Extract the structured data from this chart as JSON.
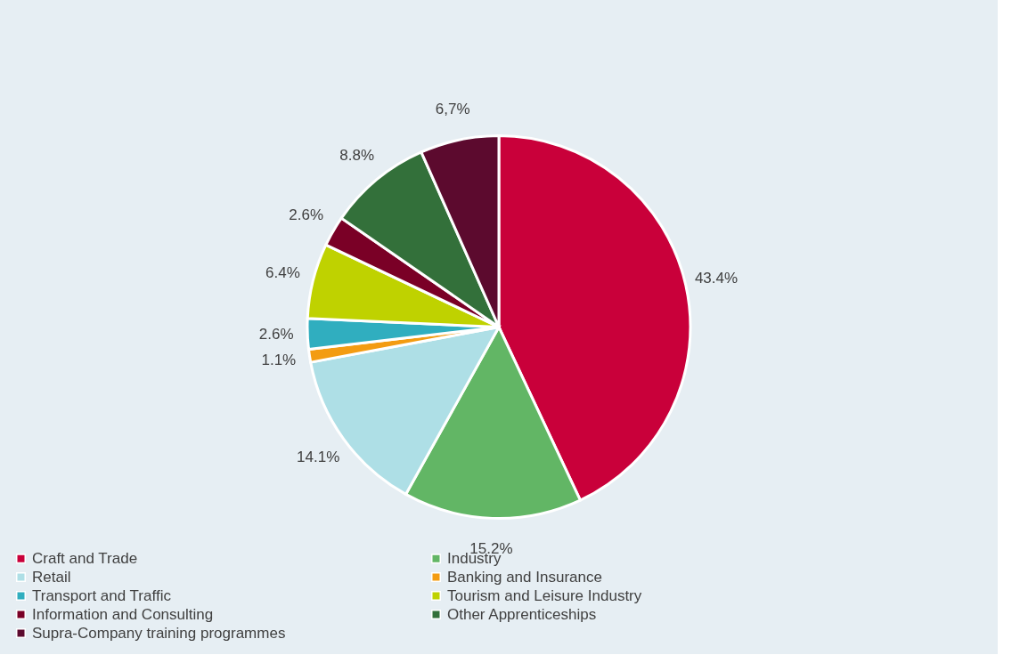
{
  "chart_data": {
    "type": "pie",
    "categories": [
      "Craft and Trade",
      "Industry",
      "Retail",
      "Banking and Insurance",
      "Transport and Traffic",
      "Tourism and Leisure Industry",
      "Information and Consulting",
      "Other Apprenticeships",
      "Supra-Company training programmes"
    ],
    "values": [
      43.4,
      15.2,
      14.1,
      1.1,
      2.6,
      6.4,
      2.6,
      8.8,
      6.7
    ],
    "value_labels": [
      "43.4%",
      "15.2%",
      "14.1%",
      "1.1%",
      "2.6%",
      "6.4%",
      "2.6%",
      "8.8%",
      "6,7%"
    ],
    "colors": [
      "#c9003a",
      "#62b665",
      "#aedfe6",
      "#f39c12",
      "#30aebf",
      "#bfd200",
      "#7a0026",
      "#33703a",
      "#5c0a2e"
    ],
    "legend": "bottom left"
  }
}
